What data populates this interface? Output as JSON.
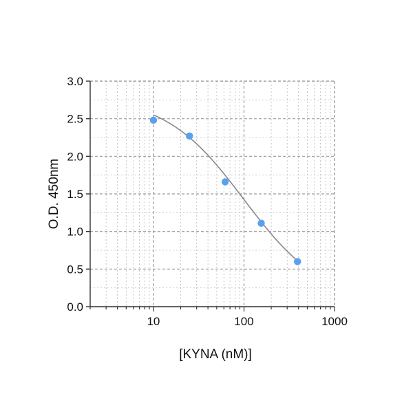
{
  "chart_data": {
    "type": "scatter",
    "xlabel": "[KYNA (nM)]",
    "ylabel": "O.D. 450nm",
    "x_scale": "log",
    "xlim": [
      2,
      1000
    ],
    "ylim": [
      0,
      3.0
    ],
    "x_ticks": [
      10,
      100,
      1000
    ],
    "x_tick_labels": [
      "10",
      "100",
      "1000"
    ],
    "y_ticks": [
      0,
      0.5,
      1.0,
      1.5,
      2.0,
      2.5,
      3.0
    ],
    "y_tick_labels": [
      "0.0",
      "0.5",
      "1.0",
      "1.5",
      "2.0",
      "2.5",
      "3.0"
    ],
    "grid": true,
    "points": [
      {
        "x": 10,
        "y": 2.48
      },
      {
        "x": 25,
        "y": 2.27
      },
      {
        "x": 62,
        "y": 1.66
      },
      {
        "x": 155,
        "y": 1.11
      },
      {
        "x": 390,
        "y": 0.6
      }
    ],
    "fit_curve": {
      "model": "4PL",
      "top": 2.8,
      "bottom": 0.05,
      "ec50": 100,
      "hill": 1.0,
      "x_range": [
        10,
        390
      ]
    },
    "colors": {
      "points": "#5aa0ee",
      "curve": "#888888",
      "grid": "#9a9a9a",
      "axis": "#333333"
    }
  }
}
